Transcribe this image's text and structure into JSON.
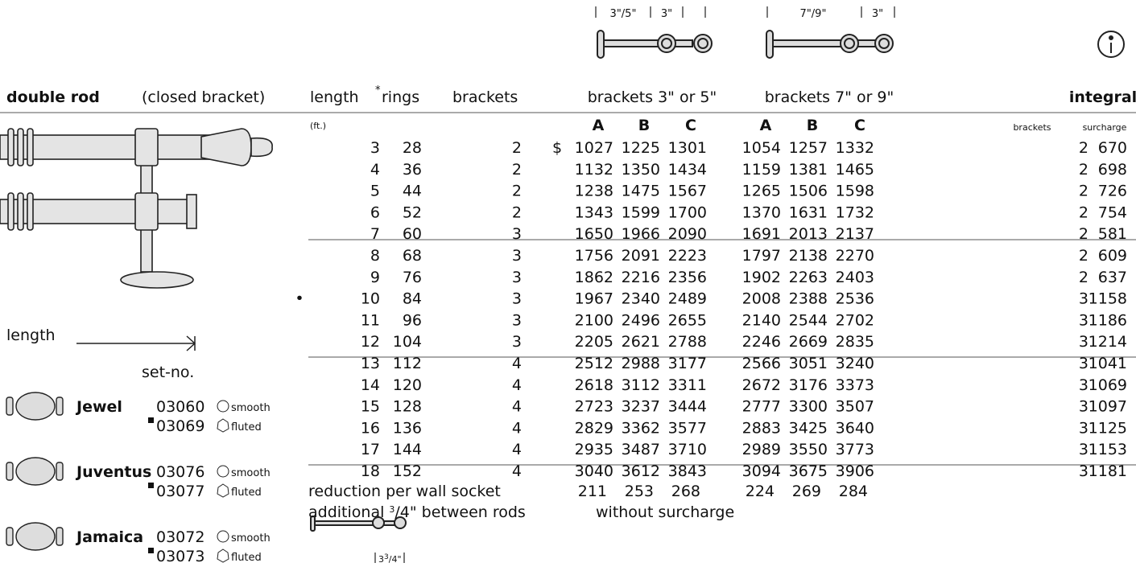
{
  "header": {
    "title": "double rod",
    "subtitle": "(closed bracket)",
    "columns": {
      "length": "length",
      "rings_mark": "*",
      "rings": "rings",
      "brackets": "brackets",
      "set1": "brackets 3\" or 5\"",
      "set2": "brackets 7\" or 9\"",
      "integral": "integral"
    },
    "dims1": [
      "3\"/5\"",
      "3\""
    ],
    "dims2": [
      "7\"/9\"",
      "3\""
    ]
  },
  "subheader": {
    "unit": "(ft.)",
    "set1": [
      "A",
      "B",
      "C"
    ],
    "set2": [
      "A",
      "B",
      "C"
    ],
    "integral": [
      "brackets",
      "surcharge"
    ]
  },
  "currency": "$",
  "rows": [
    {
      "cells": [
        3,
        28,
        2,
        1027,
        1225,
        1301,
        1054,
        1257,
        1332,
        2,
        670
      ]
    },
    {
      "cells": [
        4,
        36,
        2,
        1132,
        1350,
        1434,
        1159,
        1381,
        1465,
        2,
        698
      ]
    },
    {
      "cells": [
        5,
        44,
        2,
        1238,
        1475,
        1567,
        1265,
        1506,
        1598,
        2,
        726
      ]
    },
    {
      "cells": [
        6,
        52,
        2,
        1343,
        1599,
        1700,
        1370,
        1631,
        1732,
        2,
        754
      ]
    },
    {
      "cells": [
        7,
        60,
        3,
        1650,
        1966,
        2090,
        1691,
        2013,
        2137,
        2,
        581
      ]
    },
    {
      "cells": [
        8,
        68,
        3,
        1756,
        2091,
        2223,
        1797,
        2138,
        2270,
        2,
        609
      ]
    },
    {
      "cells": [
        9,
        76,
        3,
        1862,
        2216,
        2356,
        1902,
        2263,
        2403,
        2,
        637
      ]
    },
    {
      "mark": "•",
      "cells": [
        10,
        84,
        3,
        1967,
        2340,
        2489,
        2008,
        2388,
        2536,
        3,
        1158
      ]
    },
    {
      "cells": [
        11,
        96,
        3,
        2100,
        2496,
        2655,
        2140,
        2544,
        2702,
        3,
        1186
      ]
    },
    {
      "cells": [
        12,
        104,
        3,
        2205,
        2621,
        2788,
        2246,
        2669,
        2835,
        3,
        1214
      ]
    },
    {
      "cells": [
        13,
        112,
        4,
        2512,
        2988,
        3177,
        2566,
        3051,
        3240,
        3,
        1041
      ]
    },
    {
      "cells": [
        14,
        120,
        4,
        2618,
        3112,
        3311,
        2672,
        3176,
        3373,
        3,
        1069
      ]
    },
    {
      "cells": [
        15,
        128,
        4,
        2723,
        3237,
        3444,
        2777,
        3300,
        3507,
        3,
        1097
      ]
    },
    {
      "cells": [
        16,
        136,
        4,
        2829,
        3362,
        3577,
        2883,
        3425,
        3640,
        3,
        1125
      ]
    },
    {
      "cells": [
        17,
        144,
        4,
        2935,
        3487,
        3710,
        2989,
        3550,
        3773,
        3,
        1153
      ]
    },
    {
      "cells": [
        18,
        152,
        4,
        3040,
        3612,
        3843,
        3094,
        3675,
        3906,
        3,
        1181
      ]
    }
  ],
  "footer": {
    "reduction": {
      "label": "reduction per wall socket",
      "values": [
        211,
        253,
        268,
        224,
        269,
        284
      ]
    },
    "additional": {
      "pre": "additional",
      "num": "3",
      "post": "/4\" between rods"
    },
    "note": "without surcharge",
    "spacing": {
      "whole": "3",
      "num": "3",
      "post": "/4\""
    }
  },
  "left": {
    "length": "length",
    "set_no": "set-no.",
    "items": [
      {
        "name": "Jewel",
        "sets": [
          {
            "no": "03060",
            "finish": "smooth"
          },
          {
            "no": "03069",
            "finish": "fluted"
          }
        ]
      },
      {
        "name": "Juventus",
        "sets": [
          {
            "no": "03076",
            "finish": "smooth"
          },
          {
            "no": "03077",
            "finish": "fluted"
          }
        ]
      },
      {
        "name": "Jamaica",
        "sets": [
          {
            "no": "03072",
            "finish": "smooth"
          },
          {
            "no": "03073",
            "finish": "fluted"
          }
        ]
      }
    ]
  }
}
